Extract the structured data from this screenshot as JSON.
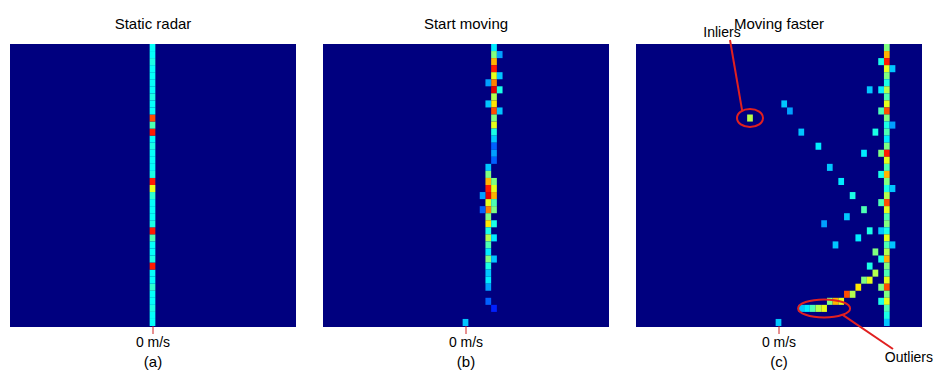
{
  "chart_data": [
    {
      "type": "heatmap",
      "title": "Static radar",
      "caption": "(a)",
      "xlim": [
        -25,
        25
      ],
      "ylim": [
        0,
        40
      ],
      "xticks": [
        {
          "value": 0,
          "label": "0 m/s"
        }
      ],
      "tick_labels": "x",
      "clim": [
        0,
        1
      ],
      "cells": [
        [
          0,
          0,
          0.38
        ],
        [
          0,
          1,
          0.38
        ],
        [
          0,
          2,
          0.4
        ],
        [
          0,
          3,
          0.38
        ],
        [
          0,
          4,
          0.38
        ],
        [
          0,
          5,
          0.42
        ],
        [
          0,
          6,
          0.38
        ],
        [
          0,
          7,
          0.38
        ],
        [
          0,
          8,
          0.85
        ],
        [
          0,
          9,
          0.4
        ],
        [
          0,
          10,
          0.38
        ],
        [
          0,
          11,
          0.38
        ],
        [
          0,
          12,
          0.45
        ],
        [
          0,
          13,
          0.85
        ],
        [
          0,
          14,
          0.4
        ],
        [
          0,
          15,
          0.38
        ],
        [
          0,
          16,
          0.38
        ],
        [
          0,
          17,
          0.38
        ],
        [
          0,
          18,
          0.42
        ],
        [
          0,
          19,
          0.6
        ],
        [
          0,
          20,
          0.85
        ],
        [
          0,
          21,
          0.4
        ],
        [
          0,
          22,
          0.38
        ],
        [
          0,
          23,
          0.38
        ],
        [
          0,
          24,
          0.38
        ],
        [
          0,
          25,
          0.4
        ],
        [
          0,
          26,
          0.38
        ],
        [
          0,
          27,
          0.85
        ],
        [
          0,
          28,
          0.45
        ],
        [
          0,
          29,
          0.8
        ],
        [
          0,
          30,
          0.38
        ],
        [
          0,
          31,
          0.38
        ],
        [
          0,
          32,
          0.4
        ],
        [
          0,
          33,
          0.38
        ],
        [
          0,
          34,
          0.38
        ],
        [
          0,
          35,
          0.38
        ],
        [
          0,
          36,
          0.38
        ],
        [
          0,
          37,
          0.4
        ],
        [
          0,
          38,
          0.38
        ],
        [
          0,
          39,
          0.38
        ]
      ],
      "annotations": []
    },
    {
      "type": "heatmap",
      "title": "Start moving",
      "caption": "(b)",
      "xlim": [
        -25,
        25
      ],
      "ylim": [
        0,
        40
      ],
      "xticks": [
        {
          "value": 0,
          "label": "0 m/s"
        }
      ],
      "tick_labels": "x",
      "clim": [
        0,
        1
      ],
      "cells": [
        [
          5,
          39,
          0.35
        ],
        [
          5,
          38,
          0.5
        ],
        [
          5,
          37,
          0.7
        ],
        [
          5,
          36,
          0.85
        ],
        [
          5,
          35,
          0.6
        ],
        [
          5,
          34,
          0.75
        ],
        [
          5,
          33,
          0.9
        ],
        [
          5,
          32,
          0.55
        ],
        [
          5,
          31,
          0.65
        ],
        [
          5,
          30,
          0.8
        ],
        [
          5,
          29,
          0.5
        ],
        [
          5,
          28,
          0.6
        ],
        [
          5,
          27,
          0.4
        ],
        [
          5,
          26,
          0.3
        ],
        [
          6,
          38,
          0.25
        ],
        [
          6,
          35,
          0.3
        ],
        [
          6,
          33,
          0.4
        ],
        [
          6,
          30,
          0.3
        ],
        [
          4,
          34,
          0.25
        ],
        [
          4,
          31,
          0.3
        ],
        [
          5,
          25,
          0.2
        ],
        [
          5,
          24,
          0.25
        ],
        [
          5,
          23,
          0.2
        ],
        [
          4,
          22,
          0.3
        ],
        [
          4,
          21,
          0.5
        ],
        [
          4,
          20,
          0.7
        ],
        [
          4,
          19,
          0.85
        ],
        [
          4,
          18,
          0.9
        ],
        [
          4,
          17,
          0.6
        ],
        [
          4,
          16,
          0.75
        ],
        [
          4,
          15,
          0.5
        ],
        [
          4,
          14,
          0.65
        ],
        [
          4,
          13,
          0.4
        ],
        [
          4,
          12,
          0.55
        ],
        [
          4,
          11,
          0.45
        ],
        [
          4,
          10,
          0.35
        ],
        [
          4,
          9,
          0.5
        ],
        [
          4,
          8,
          0.4
        ],
        [
          4,
          7,
          0.3
        ],
        [
          4,
          6,
          0.35
        ],
        [
          4,
          5,
          0.25
        ],
        [
          5,
          20,
          0.5
        ],
        [
          5,
          19,
          0.6
        ],
        [
          5,
          18,
          0.7
        ],
        [
          5,
          17,
          0.45
        ],
        [
          5,
          16,
          0.5
        ],
        [
          5,
          14,
          0.4
        ],
        [
          5,
          12,
          0.35
        ],
        [
          5,
          9,
          0.3
        ],
        [
          3,
          18,
          0.25
        ],
        [
          3,
          16,
          0.2
        ],
        [
          4,
          3,
          0.2
        ],
        [
          5,
          2,
          0.15
        ],
        [
          0,
          0,
          0.3
        ]
      ],
      "annotations": []
    },
    {
      "type": "heatmap",
      "title": "Moving faster",
      "caption": "(c)",
      "xlim": [
        -25,
        25
      ],
      "ylim": [
        0,
        40
      ],
      "xticks": [
        {
          "value": 0,
          "label": "0 m/s"
        }
      ],
      "tick_labels": "x",
      "clim": [
        0,
        1
      ],
      "cells": [
        [
          19,
          39,
          0.5
        ],
        [
          19,
          38,
          0.7
        ],
        [
          19,
          37,
          0.85
        ],
        [
          19,
          36,
          0.6
        ],
        [
          19,
          35,
          0.5
        ],
        [
          19,
          34,
          0.4
        ],
        [
          19,
          33,
          0.55
        ],
        [
          19,
          32,
          0.45
        ],
        [
          19,
          31,
          0.6
        ],
        [
          19,
          30,
          0.8
        ],
        [
          19,
          29,
          0.5
        ],
        [
          19,
          28,
          0.4
        ],
        [
          19,
          27,
          0.45
        ],
        [
          19,
          26,
          0.35
        ],
        [
          19,
          25,
          0.5
        ],
        [
          19,
          24,
          0.85
        ],
        [
          19,
          23,
          0.6
        ],
        [
          19,
          22,
          0.45
        ],
        [
          19,
          21,
          0.7
        ],
        [
          19,
          20,
          0.5
        ],
        [
          19,
          19,
          0.4
        ],
        [
          19,
          18,
          0.55
        ],
        [
          19,
          17,
          0.8
        ],
        [
          19,
          16,
          0.6
        ],
        [
          19,
          15,
          0.45
        ],
        [
          19,
          14,
          0.5
        ],
        [
          19,
          13,
          0.4
        ],
        [
          19,
          12,
          0.6
        ],
        [
          19,
          11,
          0.45
        ],
        [
          19,
          10,
          0.55
        ],
        [
          19,
          9,
          0.7
        ],
        [
          19,
          8,
          0.5
        ],
        [
          19,
          7,
          0.45
        ],
        [
          19,
          6,
          0.6
        ],
        [
          19,
          5,
          0.8
        ],
        [
          19,
          4,
          0.5
        ],
        [
          19,
          3,
          0.6
        ],
        [
          19,
          2,
          0.45
        ],
        [
          19,
          1,
          0.4
        ],
        [
          19,
          0,
          0.3
        ],
        [
          18,
          37,
          0.4
        ],
        [
          18,
          33,
          0.35
        ],
        [
          18,
          30,
          0.45
        ],
        [
          18,
          24,
          0.5
        ],
        [
          18,
          21,
          0.4
        ],
        [
          18,
          17,
          0.45
        ],
        [
          18,
          13,
          0.3
        ],
        [
          18,
          9,
          0.4
        ],
        [
          18,
          5,
          0.5
        ],
        [
          18,
          3,
          0.4
        ],
        [
          20,
          36,
          0.3
        ],
        [
          20,
          28,
          0.25
        ],
        [
          20,
          19,
          0.3
        ],
        [
          20,
          11,
          0.3
        ],
        [
          -5,
          29,
          0.55
        ],
        [
          1,
          31,
          0.3
        ],
        [
          2,
          30,
          0.25
        ],
        [
          4,
          27,
          0.3
        ],
        [
          7,
          25,
          0.35
        ],
        [
          9,
          22,
          0.3
        ],
        [
          11,
          20,
          0.35
        ],
        [
          13,
          18,
          0.4
        ],
        [
          12,
          15,
          0.3
        ],
        [
          15,
          16,
          0.45
        ],
        [
          16,
          13,
          0.4
        ],
        [
          14,
          12,
          0.35
        ],
        [
          17,
          10,
          0.5
        ],
        [
          16,
          8,
          0.4
        ],
        [
          10,
          11,
          0.3
        ],
        [
          15,
          24,
          0.35
        ],
        [
          17,
          27,
          0.4
        ],
        [
          16,
          33,
          0.3
        ],
        [
          8,
          14,
          0.25
        ],
        [
          4,
          2,
          0.3
        ],
        [
          5,
          2,
          0.35
        ],
        [
          6,
          2,
          0.45
        ],
        [
          7,
          2,
          0.55
        ],
        [
          8,
          2,
          0.6
        ],
        [
          9,
          3,
          0.5
        ],
        [
          10,
          3,
          0.7
        ],
        [
          11,
          3,
          0.6
        ],
        [
          12,
          4,
          0.8
        ],
        [
          13,
          4,
          0.55
        ],
        [
          14,
          5,
          0.65
        ],
        [
          15,
          6,
          0.5
        ],
        [
          16,
          6,
          0.6
        ],
        [
          17,
          7,
          0.55
        ],
        [
          0,
          0,
          0.3
        ]
      ],
      "annotations": [
        {
          "label": "Inliers",
          "x": -5,
          "y": 29
        },
        {
          "label": "Outliers",
          "x": 8,
          "y": 2
        }
      ]
    }
  ]
}
